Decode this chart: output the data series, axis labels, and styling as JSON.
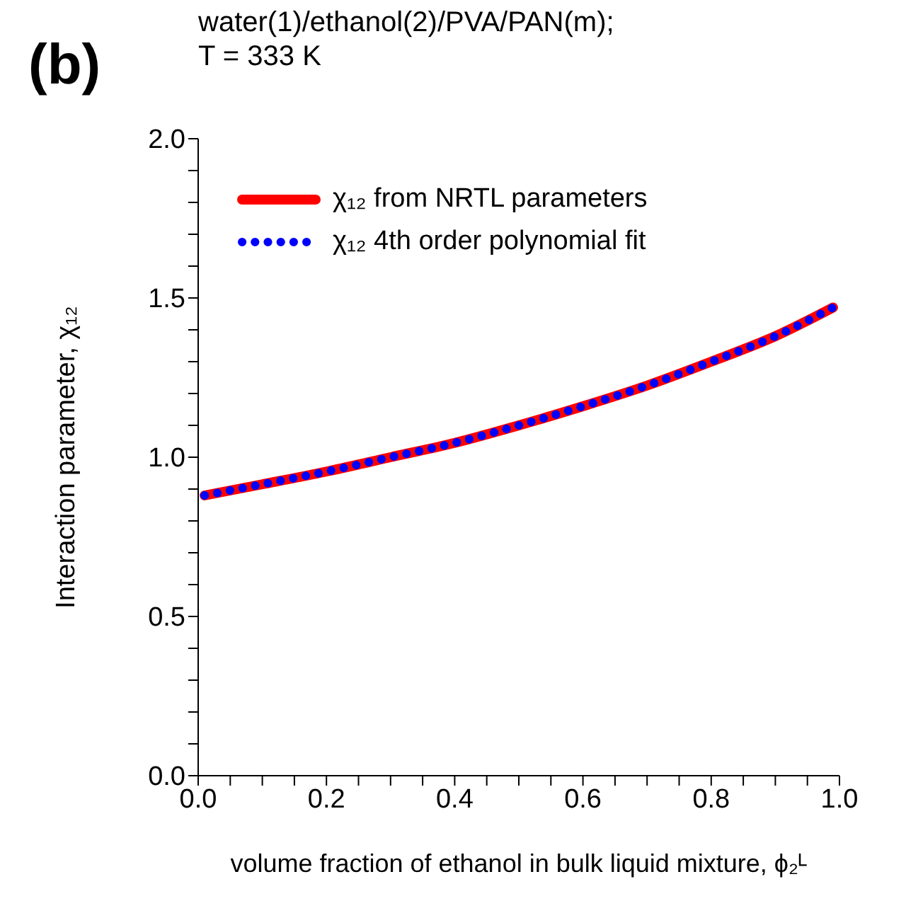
{
  "chart_data": {
    "type": "line",
    "title": "water(1)/ethanol(2)/PVA/PAN(m);",
    "subtitle": "T = 333 K",
    "annotations": [
      "(b)"
    ],
    "xlabel": "volume fraction of ethanol in bulk liquid mixture, ϕ₂ᴸ",
    "ylabel": "Interaction parameter, χ₁₂",
    "x": [
      0.01,
      0.1,
      0.2,
      0.3,
      0.4,
      0.5,
      0.6,
      0.7,
      0.8,
      0.9,
      0.99
    ],
    "series": [
      {
        "name": "χ₁₂ from NRTL parameters",
        "color": "#ff0000",
        "line_style": "solid",
        "values": [
          0.88,
          0.915,
          0.955,
          1.0,
          1.045,
          1.1,
          1.16,
          1.225,
          1.3,
          1.38,
          1.47
        ]
      },
      {
        "name": "χ₁₂ 4th order polynomial fit",
        "color": "#0000ff",
        "line_style": "dotted",
        "values": [
          0.88,
          0.915,
          0.955,
          1.0,
          1.045,
          1.1,
          1.16,
          1.225,
          1.3,
          1.38,
          1.47
        ]
      }
    ],
    "xlim": [
      0,
      1
    ],
    "ylim": [
      0,
      2
    ],
    "xticks": [
      {
        "value": 0,
        "label": "0.0"
      },
      {
        "value": 0.05,
        "label": null
      },
      0.2,
      {
        "value": 0.1,
        "label": null
      },
      {
        "value": 0.15,
        "label": null
      },
      {
        "value": 0.25,
        "label": null
      },
      {
        "value": 0.3,
        "label": null
      },
      {
        "value": 0.35,
        "label": null
      },
      0.4,
      {
        "value": 0.45,
        "label": null
      },
      {
        "value": 0.5,
        "label": null
      },
      {
        "value": 0.55,
        "label": null
      },
      0.6,
      {
        "value": 0.65,
        "label": null
      },
      {
        "value": 0.7,
        "label": null
      },
      {
        "value": 0.75,
        "label": null
      },
      0.8,
      {
        "value": 0.85,
        "label": null
      },
      {
        "value": 0.9,
        "label": null
      },
      {
        "value": 0.95,
        "label": null
      },
      {
        "value": 1,
        "label": "1.0"
      }
    ],
    "yticks": [
      {
        "value": 0,
        "label": "0.0"
      },
      {
        "value": 0.1,
        "label": null
      },
      {
        "value": 0.2,
        "label": null
      },
      {
        "value": 0.3,
        "label": null
      },
      {
        "value": 0.4,
        "label": null
      },
      0.5,
      {
        "value": 0.6,
        "label": null
      },
      {
        "value": 0.7,
        "label": null
      },
      {
        "value": 0.8,
        "label": null
      },
      {
        "value": 0.9,
        "label": null
      },
      {
        "value": 1,
        "label": "1.0"
      },
      {
        "value": 1.1,
        "label": null
      },
      {
        "value": 1.2,
        "label": null
      },
      {
        "value": 1.3,
        "label": null
      },
      {
        "value": 1.4,
        "label": null
      },
      1.5,
      {
        "value": 1.6,
        "label": null
      },
      {
        "value": 1.7,
        "label": null
      },
      {
        "value": 1.8,
        "label": null
      },
      {
        "value": 1.9,
        "label": null
      },
      {
        "value": 2,
        "label": "2.0"
      }
    ],
    "grid": false,
    "legend": "top left",
    "marker": "none"
  }
}
